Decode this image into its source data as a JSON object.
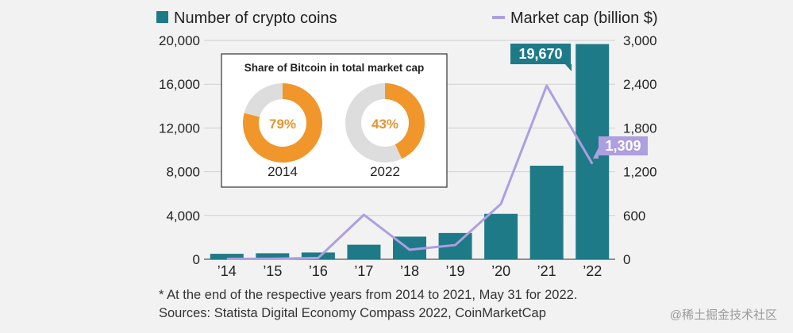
{
  "chart_data": {
    "type": "bar",
    "legend": {
      "bars_label": "Number of crypto coins",
      "line_label": "Market cap (billion $)"
    },
    "categories": [
      "’14",
      "’15",
      "’16",
      "’17",
      "’18",
      "’19",
      "’20",
      "’21",
      "’22"
    ],
    "series": [
      {
        "name": "Number of crypto coins",
        "type": "bar",
        "axis": "left",
        "values": [
          500,
          550,
          620,
          1330,
          2070,
          2400,
          4150,
          8550,
          19670
        ]
      },
      {
        "name": "Market cap (billion $)",
        "type": "line",
        "axis": "right",
        "values": [
          5,
          7,
          18,
          610,
          130,
          195,
          760,
          2380,
          1309
        ]
      }
    ],
    "y_left": {
      "ylim": [
        0,
        20000
      ],
      "ticks": [
        "0",
        "4,000",
        "8,000",
        "12,000",
        "16,000",
        "20,000"
      ]
    },
    "y_right": {
      "ylim": [
        0,
        3000
      ],
      "ticks": [
        "0",
        "600",
        "1,200",
        "1,800",
        "2,400",
        "3,000"
      ]
    },
    "callouts": {
      "bar_last": "19,670",
      "line_last": "1,309"
    },
    "inset": {
      "title": "Share of Bitcoin in total market cap",
      "pies": [
        {
          "year": "2014",
          "value": 79,
          "label": "79%"
        },
        {
          "year": "2022",
          "value": 43,
          "label": "43%"
        }
      ]
    }
  },
  "colors": {
    "bar": "#1f7a88",
    "line": "#ad9fe0",
    "line_callout": "#ad9fe0",
    "pie_fill": "#f0962a",
    "pie_rest": "#dddddd",
    "background": "#f2f2f2"
  },
  "footnotes": {
    "note": "* At the end of the respective years from 2014 to 2021, May 31 for 2022.",
    "sources": "Sources: Statista Digital Economy Compass 2022, CoinMarketCap"
  },
  "watermark": "@稀土掘金技术社区"
}
